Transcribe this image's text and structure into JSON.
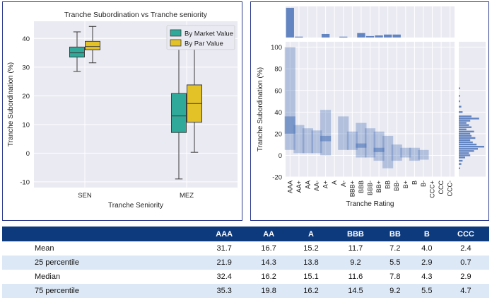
{
  "chart_data": [
    {
      "type": "box",
      "title": "Tranche Subordination vs Tranche seniority",
      "xlabel": "Tranche Seniority",
      "ylabel": "Tranche Subordination (%)",
      "ylim": [
        -12,
        46
      ],
      "yticks": [
        -10,
        0,
        10,
        20,
        30,
        40
      ],
      "categories": [
        "SEN",
        "MEZ"
      ],
      "legend_position": "top-right",
      "grid": true,
      "series": [
        {
          "name": "By Market Value",
          "color": "#2ea99a",
          "boxes": [
            {
              "category": "SEN",
              "whisker_low": 28.5,
              "q1": 33.5,
              "median": 35.0,
              "q3": 37.0,
              "whisker_high": 42.3
            },
            {
              "category": "MEZ",
              "whisker_low": -9.0,
              "q1": 7.2,
              "median": 13.0,
              "q3": 20.8,
              "whisker_high": 41.5
            }
          ]
        },
        {
          "name": "By Par Value",
          "color": "#e3c228",
          "boxes": [
            {
              "category": "SEN",
              "whisker_low": 31.5,
              "q1": 36.0,
              "median": 37.2,
              "q3": 39.0,
              "whisker_high": 44.2
            },
            {
              "category": "MEZ",
              "whisker_low": 0.3,
              "q1": 10.8,
              "median": 17.3,
              "q3": 23.8,
              "whisker_high": 41.5
            }
          ]
        }
      ]
    },
    {
      "type": "heatmap",
      "xlabel": "Tranche Rating",
      "ylabel": "Tranche Subordination (%)",
      "ylim": [
        -20,
        105
      ],
      "yticks": [
        -20,
        0,
        20,
        40,
        60,
        80,
        100
      ],
      "color": "#4a72b8",
      "categories": [
        "AAA",
        "AA+",
        "AA",
        "AA-",
        "A+",
        "A",
        "A-",
        "BBB+",
        "BBB",
        "BBB-",
        "BB+",
        "BB",
        "BB-",
        "B+",
        "B",
        "B-",
        "CCC+",
        "CCC",
        "CCC-"
      ],
      "ranges": [
        {
          "category": "AAA",
          "low": 5,
          "high": 100,
          "dense_low": 20,
          "dense_high": 36
        },
        {
          "category": "AA+",
          "low": 2,
          "high": 28,
          "dense_low": 0,
          "dense_high": 0
        },
        {
          "category": "AA",
          "low": 2,
          "high": 25,
          "dense_low": 0,
          "dense_high": 0
        },
        {
          "category": "AA-",
          "low": 2,
          "high": 23,
          "dense_low": 0,
          "dense_high": 0
        },
        {
          "category": "A+",
          "low": 0,
          "high": 42,
          "dense_low": 13,
          "dense_high": 18
        },
        {
          "category": "A",
          "low": 0,
          "high": 0,
          "dense_low": 0,
          "dense_high": 0
        },
        {
          "category": "A-",
          "low": 5,
          "high": 36,
          "dense_low": 0,
          "dense_high": 0
        },
        {
          "category": "BBB+",
          "low": 5,
          "high": 22,
          "dense_low": 0,
          "dense_high": 0
        },
        {
          "category": "BBB",
          "low": -2,
          "high": 30,
          "dense_low": 7,
          "dense_high": 11
        },
        {
          "category": "BBB-",
          "low": -2,
          "high": 25,
          "dense_low": 0,
          "dense_high": 0
        },
        {
          "category": "BB+",
          "low": -5,
          "high": 22,
          "dense_low": 3,
          "dense_high": 7
        },
        {
          "category": "BB",
          "low": -12,
          "high": 18,
          "dense_low": 0,
          "dense_high": 0
        },
        {
          "category": "BB-",
          "low": -5,
          "high": 10,
          "dense_low": 0,
          "dense_high": 0
        },
        {
          "category": "B+",
          "low": -2,
          "high": 7,
          "dense_low": 0,
          "dense_high": 0
        },
        {
          "category": "B",
          "low": -5,
          "high": 7,
          "dense_low": 0,
          "dense_high": 0
        },
        {
          "category": "B-",
          "low": -4,
          "high": 5,
          "dense_low": 0,
          "dense_high": 0
        },
        {
          "category": "CCC+",
          "low": 0,
          "high": 0,
          "dense_low": 0,
          "dense_high": 0
        },
        {
          "category": "CCC",
          "low": 0,
          "high": 0,
          "dense_low": 0,
          "dense_high": 0
        },
        {
          "category": "CCC-",
          "low": 0,
          "high": 0,
          "dense_low": 0,
          "dense_high": 0
        }
      ],
      "top_marginal": [
        10,
        0.3,
        0,
        0,
        1.2,
        0,
        0.3,
        0,
        1.5,
        0.5,
        0.7,
        1.0,
        1.0,
        0,
        0,
        0,
        0,
        0,
        0
      ],
      "right_marginal": [
        {
          "y": 62,
          "count": 1
        },
        {
          "y": 55,
          "count": 1
        },
        {
          "y": 50,
          "count": 1
        },
        {
          "y": 45,
          "count": 2
        },
        {
          "y": 40,
          "count": 3
        },
        {
          "y": 36,
          "count": 10
        },
        {
          "y": 34,
          "count": 16
        },
        {
          "y": 32,
          "count": 9
        },
        {
          "y": 30,
          "count": 6
        },
        {
          "y": 28,
          "count": 8
        },
        {
          "y": 26,
          "count": 10
        },
        {
          "y": 24,
          "count": 6
        },
        {
          "y": 22,
          "count": 12
        },
        {
          "y": 20,
          "count": 9
        },
        {
          "y": 18,
          "count": 10
        },
        {
          "y": 16,
          "count": 13
        },
        {
          "y": 14,
          "count": 9
        },
        {
          "y": 12,
          "count": 11
        },
        {
          "y": 10,
          "count": 14
        },
        {
          "y": 8,
          "count": 20
        },
        {
          "y": 6,
          "count": 15
        },
        {
          "y": 4,
          "count": 12
        },
        {
          "y": 2,
          "count": 8
        },
        {
          "y": 0,
          "count": 9
        },
        {
          "y": -2,
          "count": 5
        },
        {
          "y": -5,
          "count": 3
        },
        {
          "y": -8,
          "count": 2
        },
        {
          "y": -12,
          "count": 1
        }
      ]
    }
  ],
  "table": {
    "headers": [
      "",
      "AAA",
      "AA",
      "A",
      "BBB",
      "BB",
      "B",
      "CCC"
    ],
    "rows": [
      {
        "label": "Mean",
        "values": [
          "31.7",
          "16.7",
          "15.2",
          "11.7",
          "7.2",
          "4.0",
          "2.4"
        ]
      },
      {
        "label": "25 percentile",
        "values": [
          "21.9",
          "14.3",
          "13.8",
          "9.2",
          "5.5",
          "2.9",
          "0.7"
        ]
      },
      {
        "label": "Median",
        "values": [
          "32.4",
          "16.2",
          "15.1",
          "11.6",
          "7.8",
          "4.3",
          "2.9"
        ]
      },
      {
        "label": "75 percentile",
        "values": [
          "35.3",
          "19.8",
          "16.2",
          "14.5",
          "9.2",
          "5.5",
          "4.7"
        ]
      }
    ]
  }
}
